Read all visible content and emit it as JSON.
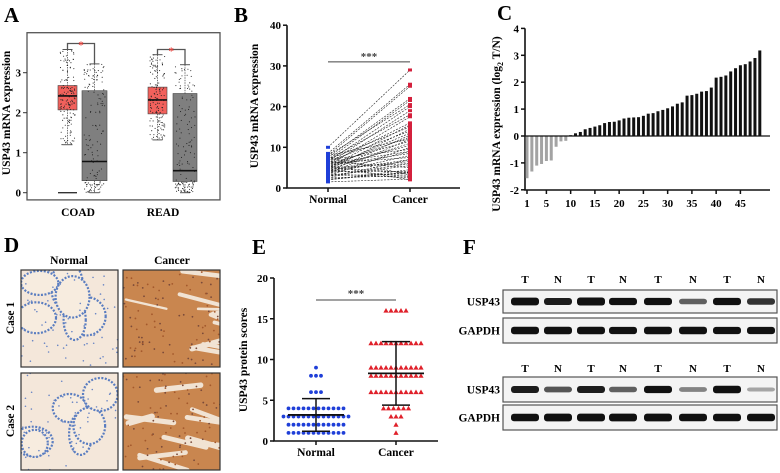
{
  "panels": {
    "A": "A",
    "B": "B",
    "C": "C",
    "D": "D",
    "E": "E",
    "F": "F"
  },
  "chart_data": [
    {
      "panel": "A",
      "type": "box",
      "ylabel": "USP43 mRNA expression",
      "categories": [
        "COAD",
        "READ"
      ],
      "ylim": [
        -0.18,
        4.0
      ],
      "yticks": [
        0,
        1,
        2,
        3
      ],
      "significance": "*",
      "significance_color": "#e8413c",
      "groups": [
        {
          "category": "COAD",
          "bracket_y": 3.73,
          "boxes": [
            {
              "color": "#f2615c",
              "min": 1.2,
              "q1": 2.07,
              "median": 2.42,
              "q3": 2.68,
              "max": 3.58,
              "zero_points": true
            },
            {
              "color": "#7f7f7f",
              "min": 0,
              "q1": 0.3,
              "median": 0.78,
              "q3": 2.55,
              "max": 3.22
            }
          ]
        },
        {
          "category": "READ",
          "bracket_y": 3.58,
          "boxes": [
            {
              "color": "#f2615c",
              "min": 1.32,
              "q1": 1.97,
              "median": 2.32,
              "q3": 2.64,
              "max": 3.45
            },
            {
              "color": "#7f7f7f",
              "min": 0,
              "q1": 0.28,
              "median": 0.55,
              "q3": 2.48,
              "max": 3.2
            }
          ]
        }
      ]
    },
    {
      "panel": "B",
      "type": "line",
      "ylabel": "USP43 mRNA expression",
      "categories": [
        "Normal",
        "Cancer"
      ],
      "ylim": [
        0,
        40
      ],
      "yticks": [
        0,
        10,
        20,
        30,
        40
      ],
      "significance": "***",
      "significance_y": 31,
      "colors": {
        "Normal": "#1f3fd8",
        "Cancer": "#d4213d"
      },
      "pairs": [
        [
          10,
          29
        ],
        [
          8.5,
          25.5
        ],
        [
          8,
          25
        ],
        [
          7.5,
          22
        ],
        [
          7,
          21.5
        ],
        [
          8,
          20.5
        ],
        [
          6.5,
          20
        ],
        [
          6,
          19
        ],
        [
          7,
          18
        ],
        [
          5.5,
          17.5
        ],
        [
          6,
          16
        ],
        [
          5,
          15.5
        ],
        [
          7,
          15
        ],
        [
          4.5,
          14.5
        ],
        [
          6.5,
          14
        ],
        [
          5,
          13.5
        ],
        [
          4,
          13
        ],
        [
          5.5,
          12.5
        ],
        [
          3.5,
          12
        ],
        [
          6,
          11.5
        ],
        [
          4.5,
          11
        ],
        [
          5,
          10.5
        ],
        [
          3,
          10
        ],
        [
          7,
          9.5
        ],
        [
          4,
          9
        ],
        [
          5.5,
          8.5
        ],
        [
          3.5,
          8
        ],
        [
          6,
          7.5
        ],
        [
          2.5,
          7
        ],
        [
          4.5,
          6.5
        ],
        [
          5,
          6
        ],
        [
          3,
          5.5
        ],
        [
          6.5,
          5
        ],
        [
          2,
          4.5
        ],
        [
          4,
          4
        ],
        [
          5,
          3.8
        ],
        [
          3,
          3.5
        ],
        [
          7.5,
          3.2
        ],
        [
          2.5,
          3
        ],
        [
          4.5,
          2.8
        ],
        [
          3.5,
          2.5
        ],
        [
          1.5,
          2.2
        ],
        [
          5.5,
          2
        ],
        [
          2,
          4
        ],
        [
          6,
          9
        ],
        [
          4,
          7
        ],
        [
          3,
          6
        ],
        [
          8,
          12
        ],
        [
          2.2,
          3.8
        ]
      ]
    },
    {
      "panel": "C",
      "type": "bar",
      "ylabel_prefix": "USP43 mRNA expression (log",
      "ylabel_sub": "2",
      "ylabel_suffix": " T/N)",
      "ylim": [
        -2,
        4
      ],
      "yticks": [
        -2,
        -1,
        0,
        1,
        2,
        3,
        4
      ],
      "xticks": [
        1,
        5,
        10,
        15,
        20,
        25,
        30,
        35,
        40,
        45
      ],
      "colors": {
        "negative": "#a3a3a3",
        "positive": "#111111"
      },
      "categories": [
        1,
        2,
        3,
        4,
        5,
        6,
        7,
        8,
        9,
        10,
        11,
        12,
        13,
        14,
        15,
        16,
        17,
        18,
        19,
        20,
        21,
        22,
        23,
        24,
        25,
        26,
        27,
        28,
        29,
        30,
        31,
        32,
        33,
        34,
        35,
        36,
        37,
        38,
        39,
        40,
        41,
        42,
        43,
        44,
        45,
        46,
        47,
        48,
        49
      ],
      "values": [
        -1.57,
        -1.32,
        -1.1,
        -1.04,
        -0.93,
        -0.91,
        -0.4,
        -0.2,
        -0.18,
        0.03,
        0.1,
        0.15,
        0.25,
        0.3,
        0.35,
        0.4,
        0.48,
        0.52,
        0.53,
        0.58,
        0.65,
        0.68,
        0.69,
        0.7,
        0.75,
        0.83,
        0.85,
        0.92,
        0.97,
        1.03,
        1.1,
        1.2,
        1.25,
        1.5,
        1.52,
        1.57,
        1.65,
        1.67,
        1.8,
        2.17,
        2.2,
        2.25,
        2.4,
        2.52,
        2.63,
        2.67,
        2.77,
        2.9,
        3.18
      ]
    },
    {
      "panel": "E",
      "type": "scatter",
      "ylabel": "USP43 protein scores",
      "categories": [
        "Normal",
        "Cancer"
      ],
      "ylim": [
        0,
        20
      ],
      "yticks": [
        0,
        5,
        10,
        15,
        20
      ],
      "significance": "***",
      "significance_y": 17.3,
      "groups": [
        {
          "category": "Normal",
          "color": "#1f3fd8",
          "marker": "circle",
          "mean": 3.2,
          "sd_low": 1.2,
          "sd_high": 5.2,
          "value_counts": [
            {
              "value": 9,
              "count": 1
            },
            {
              "value": 8,
              "count": 3
            },
            {
              "value": 6,
              "count": 3
            },
            {
              "value": 4,
              "count": 12
            },
            {
              "value": 3,
              "count": 14
            },
            {
              "value": 2,
              "count": 12
            },
            {
              "value": 1,
              "count": 12
            }
          ]
        },
        {
          "category": "Cancer",
          "color": "#e0202a",
          "marker": "triangle",
          "mean": 8.3,
          "sd_low": 4.4,
          "sd_high": 12.2,
          "value_counts": [
            {
              "value": 16,
              "count": 5
            },
            {
              "value": 12,
              "count": 11
            },
            {
              "value": 9,
              "count": 11
            },
            {
              "value": 8,
              "count": 11
            },
            {
              "value": 6,
              "count": 11
            },
            {
              "value": 4,
              "count": 6
            },
            {
              "value": 3,
              "count": 3
            },
            {
              "value": 2,
              "count": 1
            },
            {
              "value": 1,
              "count": 1
            }
          ]
        }
      ]
    }
  ],
  "ihc": {
    "columns": [
      "Normal",
      "Cancer"
    ],
    "rows": [
      "Case 1",
      "Case 2"
    ]
  },
  "western": {
    "blots": [
      {
        "lanes": [
          "T",
          "N",
          "T",
          "N",
          "T",
          "N",
          "T",
          "N"
        ],
        "rows": [
          {
            "label": "USP43",
            "intensities": [
              0.95,
              0.8,
              1,
              0.85,
              0.85,
              0.5,
              0.85,
              0.7
            ]
          },
          {
            "label": "GAPDH",
            "intensities": [
              0.9,
              0.9,
              0.9,
              0.85,
              0.9,
              0.9,
              0.85,
              0.85
            ]
          }
        ]
      },
      {
        "lanes": [
          "T",
          "N",
          "T",
          "N",
          "T",
          "N",
          "T",
          "N"
        ],
        "rows": [
          {
            "label": "USP43",
            "intensities": [
              0.8,
              0.55,
              0.8,
              0.5,
              0.85,
              0.35,
              0.9,
              0.2
            ]
          },
          {
            "label": "GAPDH",
            "intensities": [
              0.9,
              0.95,
              0.95,
              0.95,
              0.95,
              0.9,
              0.9,
              0.9
            ]
          }
        ]
      }
    ]
  }
}
